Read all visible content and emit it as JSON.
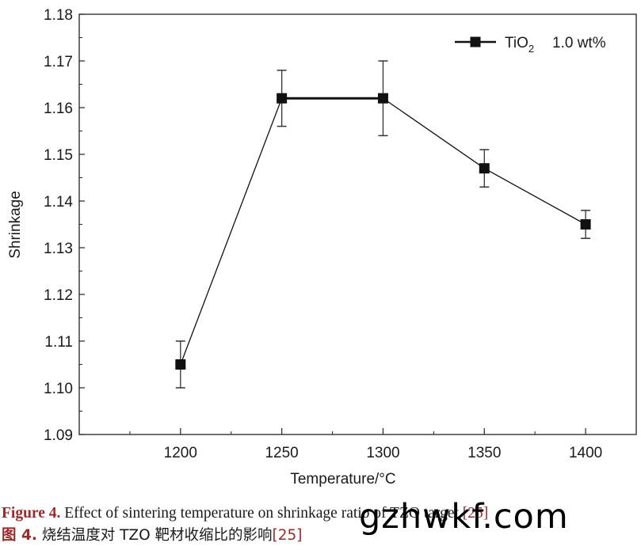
{
  "chart_data": {
    "type": "line",
    "xlabel": "Temperature/°C",
    "ylabel": "Shrinkage",
    "x": [
      1200,
      1250,
      1300,
      1350,
      1400
    ],
    "xticks": [
      "1200",
      "1250",
      "1300",
      "1350",
      "1400"
    ],
    "xlim": [
      1150,
      1425
    ],
    "ylim": [
      1.09,
      1.18
    ],
    "yticks": [
      "1.09",
      "1.10",
      "1.11",
      "1.12",
      "1.13",
      "1.14",
      "1.15",
      "1.16",
      "1.17",
      "1.18"
    ],
    "series": [
      {
        "name_prefix": "TiO",
        "name_subscript": "2",
        "name_suffix": "1.0 wt%",
        "values": [
          1.105,
          1.162,
          1.162,
          1.147,
          1.135
        ],
        "err_low": [
          1.1,
          1.156,
          1.154,
          1.143,
          1.132
        ],
        "err_high": [
          1.11,
          1.168,
          1.17,
          1.151,
          1.138
        ],
        "marker": "square",
        "color": "#111111"
      }
    ],
    "legend_position": "top-right",
    "grid": false
  },
  "caption": {
    "en_label": "Figure 4.",
    "en_text": " Effect of sintering temperature on shrinkage ratio of TZO target ",
    "en_ref": "[25]",
    "zh_label": "图 4.",
    "zh_text": "  烧结温度对 TZO 靶材收缩比的影响",
    "zh_ref": "[25]"
  },
  "watermark": "gzhwkf.com"
}
